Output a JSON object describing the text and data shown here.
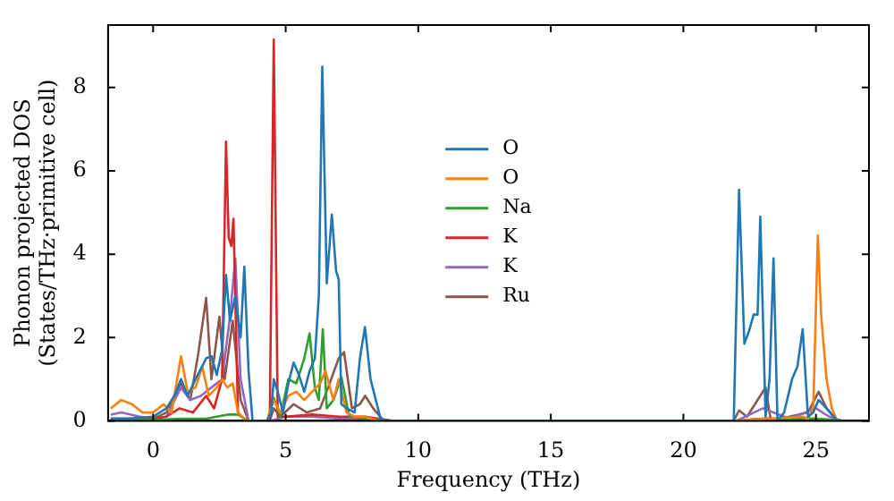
{
  "chart_data": {
    "type": "line",
    "xlabel": "Frequency (THz)",
    "ylabel": "Phonon projected DOS\n(States/THz·primitive cell)",
    "xlim": [
      -1.7,
      27
    ],
    "xticks": [
      0,
      5,
      10,
      15,
      20,
      25
    ],
    "ylim": [
      0,
      9.5
    ],
    "yticks": [
      0,
      2,
      4,
      6,
      8
    ],
    "legend": "center",
    "marker": "none",
    "line_style": "solid",
    "series": [
      {
        "name": "O",
        "color": "#1f77b4",
        "x": [
          -1.6,
          -1,
          0,
          0.5,
          0.8,
          1.05,
          1.3,
          1.6,
          2.0,
          2.2,
          2.4,
          2.6,
          2.75,
          2.9,
          3.1,
          3.3,
          3.44,
          3.6,
          3.75,
          4.3,
          4.45,
          4.55,
          4.7,
          4.9,
          5.1,
          5.3,
          5.5,
          5.7,
          5.9,
          6.1,
          6.25,
          6.38,
          6.55,
          6.74,
          6.9,
          7.0,
          7.1,
          7.3,
          7.6,
          7.8,
          7.99,
          8.2,
          8.6,
          21.9,
          22.1,
          22.3,
          22.5,
          22.65,
          22.8,
          22.9,
          23.1,
          23.25,
          23.4,
          23.55,
          23.8,
          24.1,
          24.3,
          24.5,
          24.7,
          24.9,
          25.1,
          25.4,
          25.8
        ],
        "values": [
          0.05,
          0.05,
          0.1,
          0.3,
          0.6,
          1.0,
          0.6,
          1.0,
          1.5,
          1.55,
          1.1,
          1.7,
          3.5,
          2.4,
          3.0,
          2.0,
          3.7,
          1.2,
          0,
          0,
          0.2,
          1.0,
          0.7,
          0.2,
          0.9,
          1.4,
          1.1,
          0.7,
          1.2,
          1.5,
          3.0,
          8.5,
          3.3,
          4.95,
          3.6,
          3.4,
          0.4,
          0.3,
          0.2,
          1.5,
          2.25,
          1.0,
          0,
          0,
          5.55,
          1.85,
          2.2,
          2.55,
          2.55,
          4.9,
          0.1,
          1.0,
          3.9,
          0.0,
          0.2,
          1.0,
          1.3,
          2.2,
          0.1,
          0.2,
          0.5,
          0.3,
          0
        ]
      },
      {
        "name": "O",
        "color": "#ff7f0e",
        "x": [
          -1.6,
          -1.2,
          -0.8,
          -0.4,
          0,
          0.4,
          0.7,
          1.05,
          1.3,
          1.6,
          1.85,
          2.1,
          2.4,
          2.6,
          2.8,
          3.0,
          3.2,
          3.5,
          4.3,
          4.55,
          4.8,
          5.1,
          5.4,
          5.7,
          6.0,
          6.3,
          6.5,
          6.8,
          7.0,
          7.3,
          7.6,
          8.0,
          8.5,
          22,
          24.5,
          24.7,
          24.9,
          25.07,
          25.2,
          25.4,
          25.6,
          25.8
        ],
        "values": [
          0.3,
          0.5,
          0.4,
          0.2,
          0.2,
          0.4,
          0.2,
          1.55,
          0.7,
          0.8,
          1.3,
          0.6,
          0.8,
          1.0,
          0.8,
          0.9,
          0.2,
          0,
          0,
          0.5,
          0.2,
          0.6,
          0.7,
          0.5,
          0.7,
          0.9,
          1.2,
          0.5,
          1.0,
          0.2,
          0.1,
          0.1,
          0,
          0,
          0.1,
          0.05,
          0.3,
          4.45,
          2.5,
          1.0,
          0.3,
          0
        ]
      },
      {
        "name": "Na",
        "color": "#2ca02c",
        "x": [
          -1.6,
          0,
          1,
          2,
          2.8,
          3.2,
          3.6,
          4.3,
          4.55,
          4.8,
          5.1,
          5.4,
          5.7,
          5.9,
          6.1,
          6.25,
          6.4,
          6.55,
          6.8,
          7.1,
          7.4,
          8,
          9,
          22,
          23,
          25,
          26
        ],
        "values": [
          0.02,
          0.02,
          0.05,
          0.05,
          0.15,
          0.15,
          0,
          0,
          0.55,
          0.1,
          1.0,
          0.9,
          1.5,
          2.1,
          0.8,
          0.5,
          2.2,
          0.3,
          0.5,
          1.05,
          0.1,
          0.05,
          0,
          0,
          0.05,
          0.05,
          0
        ]
      },
      {
        "name": "K",
        "color": "#d62728",
        "x": [
          -1.6,
          0,
          0.5,
          1.0,
          1.5,
          2.0,
          2.3,
          2.6,
          2.75,
          2.85,
          2.95,
          3.03,
          3.2,
          3.5,
          4.4,
          4.55,
          4.7,
          5,
          6,
          7,
          8,
          9,
          22,
          23,
          25,
          26
        ],
        "values": [
          0.05,
          0.05,
          0.1,
          0.3,
          0.2,
          0.6,
          0.3,
          1.0,
          6.7,
          4.4,
          4.2,
          4.85,
          0.2,
          0,
          0,
          9.15,
          0.1,
          0.1,
          0.15,
          0.1,
          0.1,
          0,
          0,
          0.05,
          0.05,
          0
        ]
      },
      {
        "name": "K",
        "color": "#9467bd",
        "x": [
          -1.6,
          -1.2,
          -0.5,
          0,
          0.5,
          1.05,
          1.4,
          1.8,
          2.2,
          2.6,
          2.9,
          3.1,
          3.3,
          3.6,
          4.4,
          5,
          6,
          7,
          8,
          9,
          22,
          23,
          24,
          25,
          25.5,
          26
        ],
        "values": [
          0.15,
          0.2,
          0.1,
          0.05,
          0.1,
          0.8,
          0.5,
          0.6,
          0.8,
          1.0,
          2.5,
          3.9,
          1.0,
          0,
          0,
          0.1,
          0.1,
          0.05,
          0.05,
          0,
          0,
          0.3,
          0.05,
          0.3,
          0.1,
          0
        ]
      },
      {
        "name": "Ru",
        "color": "#8c564b",
        "x": [
          -1.6,
          0,
          0.5,
          1.05,
          1.4,
          1.7,
          2.0,
          2.2,
          2.5,
          2.7,
          3.0,
          3.3,
          3.6,
          4.4,
          4.55,
          4.8,
          5.3,
          5.8,
          6.3,
          6.6,
          7.0,
          7.2,
          7.5,
          7.8,
          8.0,
          8.3,
          8.7,
          21.9,
          22.1,
          22.4,
          22.7,
          23.0,
          23.1,
          23.3,
          24,
          24.7,
          25.1,
          25.4,
          25.8
        ],
        "values": [
          0.05,
          0.05,
          0.2,
          0.9,
          0.5,
          1.6,
          2.95,
          1.0,
          2.5,
          1.0,
          2.4,
          0.5,
          0,
          0,
          0.3,
          0.1,
          0.4,
          0.2,
          0.3,
          0.8,
          1.5,
          1.65,
          0.3,
          0.4,
          0.6,
          0.3,
          0,
          0,
          0.25,
          0.1,
          0.4,
          0.7,
          0.8,
          0,
          0.1,
          0.2,
          0.7,
          0.3,
          0
        ]
      }
    ]
  }
}
